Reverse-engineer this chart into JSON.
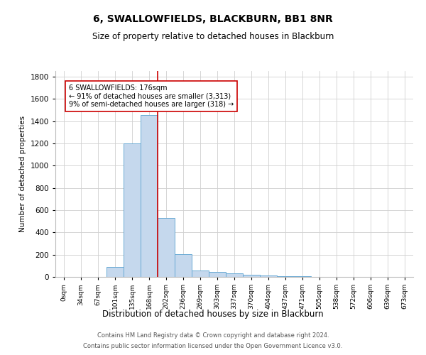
{
  "title": "6, SWALLOWFIELDS, BLACKBURN, BB1 8NR",
  "subtitle": "Size of property relative to detached houses in Blackburn",
  "xlabel": "Distribution of detached houses by size in Blackburn",
  "ylabel": "Number of detached properties",
  "bar_color": "#c5d8ed",
  "bar_edge_color": "#6aaad4",
  "categories": [
    "0sqm",
    "34sqm",
    "67sqm",
    "101sqm",
    "135sqm",
    "168sqm",
    "202sqm",
    "236sqm",
    "269sqm",
    "303sqm",
    "337sqm",
    "370sqm",
    "404sqm",
    "437sqm",
    "471sqm",
    "505sqm",
    "538sqm",
    "572sqm",
    "606sqm",
    "639sqm",
    "673sqm"
  ],
  "values": [
    0,
    0,
    0,
    90,
    1200,
    1455,
    530,
    205,
    60,
    45,
    30,
    22,
    15,
    8,
    4,
    2,
    1,
    0,
    0,
    0,
    0
  ],
  "property_line_x": 5.5,
  "property_line_color": "#cc0000",
  "annotation_text": "6 SWALLOWFIELDS: 176sqm\n← 91% of detached houses are smaller (3,313)\n9% of semi-detached houses are larger (318) →",
  "annotation_box_color": "#ffffff",
  "annotation_box_edge_color": "#cc0000",
  "ylim": [
    0,
    1850
  ],
  "yticks": [
    0,
    200,
    400,
    600,
    800,
    1000,
    1200,
    1400,
    1600,
    1800
  ],
  "footer_line1": "Contains HM Land Registry data © Crown copyright and database right 2024.",
  "footer_line2": "Contains public sector information licensed under the Open Government Licence v3.0.",
  "bg_color": "#ffffff",
  "grid_color": "#d0d0d0"
}
